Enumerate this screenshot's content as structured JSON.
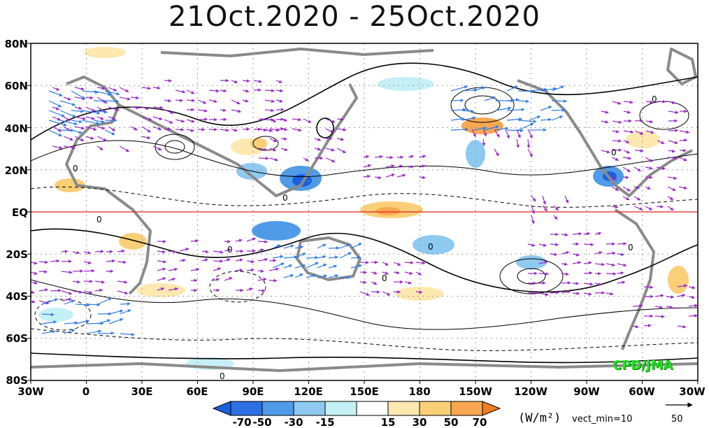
{
  "title": "21Oct.2020 - 25Oct.2020",
  "credit": "CPD/JMA",
  "lat_labels": [
    "80N",
    "60N",
    "40N",
    "20N",
    "EQ",
    "20S",
    "40S",
    "60S",
    "80S"
  ],
  "lon_labels": [
    "30W",
    "0",
    "30E",
    "60E",
    "90E",
    "120E",
    "150E",
    "180",
    "150W",
    "120W",
    "90W",
    "60W",
    "30W"
  ],
  "legend": {
    "ticks": [
      "-70",
      "-50",
      "-30",
      "-15",
      "15",
      "30",
      "50",
      "70"
    ],
    "units": "(W/m²)",
    "vect_min": "vect_min=10",
    "reference_vector": "50"
  },
  "colors": {
    "neg_strong": "#1b5fe0",
    "neg_mid": "#4f9be8",
    "neg_light": "#8ec9f0",
    "neg_faint": "#c5f0f6",
    "pos_faint": "#fde8b0",
    "pos_light": "#fbcf78",
    "pos_mid": "#f8a850",
    "pos_strong": "#f07d24",
    "land": "#8a8a8a",
    "vector": "#9a28c8",
    "equator": "#e02020",
    "credit": "#22e022"
  },
  "contour_labels": [
    "0",
    "0",
    "0",
    "0",
    "0",
    "0",
    "0",
    "0",
    "0",
    "0"
  ]
}
